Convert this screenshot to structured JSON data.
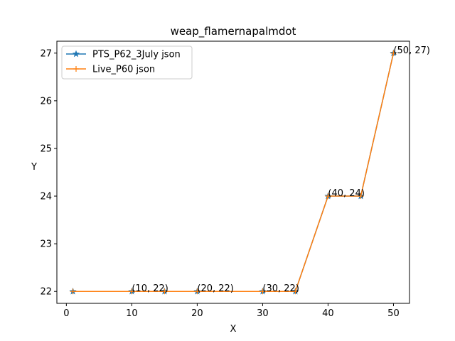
{
  "chart_data": {
    "type": "line",
    "title": "weap_flamernapalmdot",
    "xlabel": "X",
    "ylabel": "Y",
    "xlim": [
      -1.45,
      52.45
    ],
    "ylim": [
      21.75,
      27.25
    ],
    "xticks": [
      0,
      10,
      20,
      30,
      40,
      50
    ],
    "yticks": [
      22,
      23,
      24,
      25,
      26,
      27
    ],
    "legend_position": "top-left",
    "series": [
      {
        "name": "PTS_P62_3July json",
        "color": "#1f77b4",
        "marker": "star",
        "x": [
          1,
          10,
          15,
          20,
          30,
          35,
          40,
          45,
          50
        ],
        "y": [
          22,
          22,
          22,
          22,
          22,
          22,
          24,
          24,
          27
        ]
      },
      {
        "name": "Live_P60 json",
        "color": "#ff7f0e",
        "marker": "plus",
        "x": [
          1,
          10,
          15,
          20,
          30,
          35,
          40,
          45,
          50
        ],
        "y": [
          22,
          22,
          22,
          22,
          22,
          22,
          24,
          24,
          27
        ]
      }
    ],
    "annotations": [
      {
        "text": "(10, 22)",
        "x": 10,
        "y": 22
      },
      {
        "text": "(20, 22)",
        "x": 20,
        "y": 22
      },
      {
        "text": "(30, 22)",
        "x": 30,
        "y": 22
      },
      {
        "text": "(40, 24)",
        "x": 40,
        "y": 24
      },
      {
        "text": "(50, 27)",
        "x": 50,
        "y": 27
      }
    ]
  }
}
